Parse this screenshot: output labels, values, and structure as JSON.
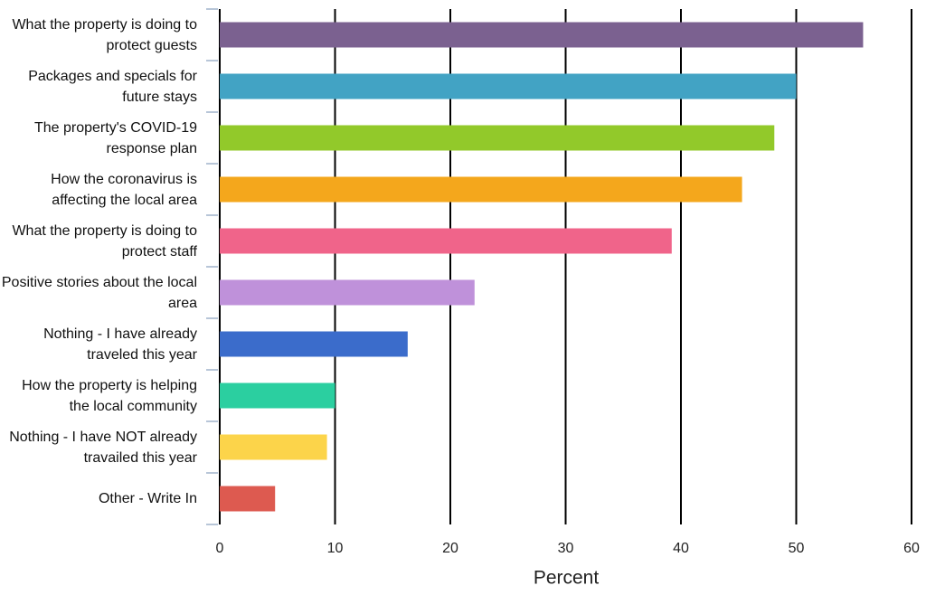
{
  "chart_data": {
    "type": "barh",
    "x_label": "Percent",
    "categories": [
      "What the property is doing to protect guests",
      "Packages and specials for future stays",
      "The property's COVID-19 response plan",
      "How the coronavirus is affecting the local area",
      "What the property is doing to protect staff",
      "Positive stories about the local area",
      "Nothing - I have already traveled this year",
      "How the property is helping the local community",
      "Nothing - I have NOT already travailed this year",
      "Other - Write In"
    ],
    "values": [
      55.8,
      50,
      48.1,
      45.3,
      39.2,
      22.1,
      16.3,
      10,
      9.3,
      4.8
    ],
    "colors": [
      "#7b6190",
      "#42a3c4",
      "#92c92a",
      "#f4a71c",
      "#f0648a",
      "#bf91da",
      "#3b6ccb",
      "#2bcfa0",
      "#fcd44a",
      "#dd5a50"
    ],
    "xlim": [
      0,
      60
    ],
    "xticks": [
      0,
      10,
      20,
      30,
      40,
      50,
      60
    ],
    "grid": true
  }
}
